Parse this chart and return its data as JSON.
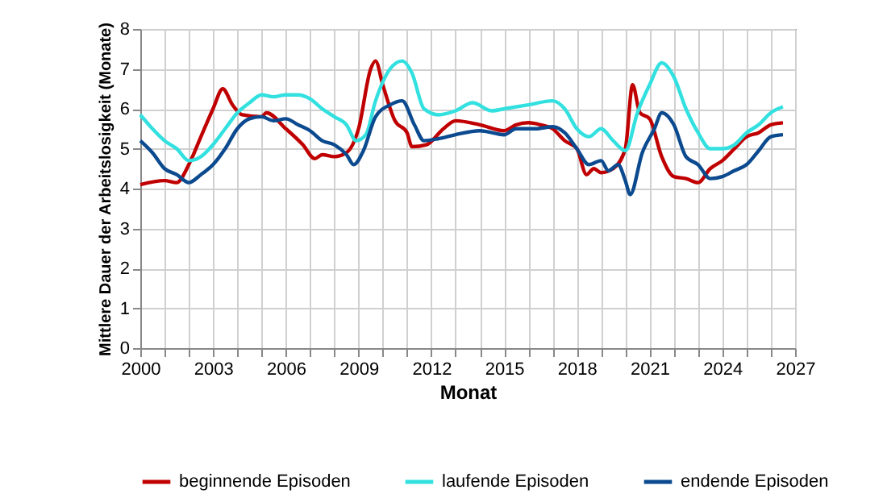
{
  "chart_data": {
    "type": "line",
    "xlabel": "Monat",
    "ylabel": "Mittlere Dauer der Arbeitslosigkeit (Monate)",
    "xlim": [
      2000,
      2027
    ],
    "ylim": [
      0,
      8
    ],
    "xticks": [
      2000,
      {
        "value": 2001,
        "label": null
      },
      {
        "value": 2002,
        "label": null
      },
      2003,
      {
        "value": 2004,
        "label": null
      },
      {
        "value": 2005,
        "label": null
      },
      2006,
      {
        "value": 2007,
        "label": null
      },
      {
        "value": 2008,
        "label": null
      },
      2009,
      {
        "value": 2010,
        "label": null
      },
      {
        "value": 2011,
        "label": null
      },
      2012,
      {
        "value": 2013,
        "label": null
      },
      {
        "value": 2014,
        "label": null
      },
      2015,
      {
        "value": 2016,
        "label": null
      },
      {
        "value": 2017,
        "label": null
      },
      2018,
      {
        "value": 2019,
        "label": null
      },
      {
        "value": 2020,
        "label": null
      },
      2021,
      {
        "value": 2022,
        "label": null
      },
      {
        "value": 2023,
        "label": null
      },
      2024,
      {
        "value": 2025,
        "label": null
      },
      {
        "value": 2026,
        "label": null
      },
      2027
    ],
    "yticks": [
      0,
      1,
      2,
      3,
      4,
      5,
      6,
      7,
      8
    ],
    "grid": true,
    "legend": "bottom",
    "marker": "none",
    "line_style": "solid",
    "series": [
      {
        "name": "beginnende Episoden",
        "color": "#c00000",
        "x": [
          2000,
          2001,
          2001.5,
          2002,
          2002.5,
          2003,
          2003.4,
          2003.8,
          2004.2,
          2005,
          2005.2,
          2006,
          2006.7,
          2007.2,
          2007.5,
          2008,
          2008.5,
          2009,
          2009.5,
          2009.7,
          2010,
          2010.5,
          2011,
          2011.2,
          2011.8,
          2012.5,
          2013,
          2014,
          2015,
          2015.5,
          2016,
          2016.5,
          2017,
          2017.5,
          2018,
          2018.4,
          2018.7,
          2019,
          2019.5,
          2020,
          2020.3,
          2020.6,
          2021,
          2021.5,
          2022,
          2022.5,
          2023,
          2023.5,
          2024,
          2024.5,
          2025,
          2025.5,
          2026,
          2026.5
        ],
        "values": [
          4.1,
          4.2,
          4.15,
          4.6,
          5.3,
          6.0,
          6.5,
          6.1,
          5.85,
          5.8,
          5.9,
          5.5,
          5.1,
          4.75,
          4.85,
          4.8,
          4.9,
          5.5,
          7.0,
          7.2,
          6.6,
          5.7,
          5.4,
          5.05,
          5.1,
          5.5,
          5.7,
          5.6,
          5.45,
          5.6,
          5.65,
          5.6,
          5.5,
          5.2,
          5.0,
          4.35,
          4.5,
          4.4,
          4.5,
          5.0,
          6.6,
          5.9,
          5.75,
          4.8,
          4.3,
          4.25,
          4.15,
          4.5,
          4.7,
          5.0,
          5.3,
          5.4,
          5.6,
          5.65
        ]
      },
      {
        "name": "laufende Episoden",
        "color": "#33e0e0",
        "x": [
          2000,
          2000.5,
          2001,
          2001.5,
          2002,
          2002.5,
          2003,
          2003.5,
          2004,
          2004.5,
          2005,
          2005.5,
          2006,
          2006.5,
          2007,
          2007.5,
          2008,
          2008.5,
          2008.9,
          2009.3,
          2009.7,
          2010.3,
          2010.8,
          2011.2,
          2011.7,
          2012.3,
          2013,
          2013.7,
          2014.5,
          2015,
          2016,
          2017,
          2017.5,
          2018,
          2018.5,
          2019,
          2019.5,
          2020,
          2020.5,
          2021,
          2021.5,
          2022,
          2022.5,
          2023,
          2023.5,
          2024,
          2024.5,
          2025,
          2025.5,
          2026,
          2026.5
        ],
        "values": [
          5.85,
          5.5,
          5.2,
          5.0,
          4.7,
          4.8,
          5.1,
          5.5,
          5.9,
          6.15,
          6.35,
          6.3,
          6.35,
          6.35,
          6.25,
          6.0,
          5.8,
          5.6,
          5.2,
          5.35,
          6.2,
          7.0,
          7.2,
          6.9,
          6.0,
          5.85,
          5.95,
          6.15,
          5.95,
          6.0,
          6.1,
          6.2,
          6.0,
          5.5,
          5.3,
          5.5,
          5.2,
          4.95,
          5.9,
          6.6,
          7.15,
          6.8,
          6.0,
          5.4,
          5.0,
          5.0,
          5.1,
          5.4,
          5.6,
          5.9,
          6.05
        ]
      },
      {
        "name": "endende Episoden",
        "color": "#0b4a8f",
        "x": [
          2000,
          2000.5,
          2001,
          2001.5,
          2002,
          2002.5,
          2003,
          2003.5,
          2004,
          2004.5,
          2005,
          2005.5,
          2006,
          2006.5,
          2007,
          2007.5,
          2008,
          2008.5,
          2008.8,
          2009.2,
          2009.7,
          2010.3,
          2010.8,
          2011.3,
          2011.7,
          2012.3,
          2013,
          2014,
          2015,
          2015.5,
          2016.3,
          2017,
          2017.5,
          2018,
          2018.5,
          2019,
          2019.3,
          2019.7,
          2020,
          2020.2,
          2020.7,
          2021.2,
          2021.5,
          2022,
          2022.5,
          2023,
          2023.5,
          2024,
          2024.5,
          2025,
          2025.5,
          2026,
          2026.5
        ],
        "values": [
          5.2,
          4.9,
          4.5,
          4.35,
          4.15,
          4.35,
          4.6,
          5.0,
          5.5,
          5.75,
          5.8,
          5.7,
          5.75,
          5.6,
          5.45,
          5.2,
          5.1,
          4.85,
          4.6,
          4.95,
          5.8,
          6.1,
          6.2,
          5.6,
          5.2,
          5.25,
          5.35,
          5.45,
          5.35,
          5.5,
          5.5,
          5.55,
          5.4,
          5.0,
          4.6,
          4.7,
          4.45,
          4.6,
          4.2,
          3.85,
          4.9,
          5.5,
          5.9,
          5.6,
          4.8,
          4.6,
          4.25,
          4.3,
          4.45,
          4.6,
          4.95,
          5.3,
          5.35
        ]
      }
    ]
  }
}
